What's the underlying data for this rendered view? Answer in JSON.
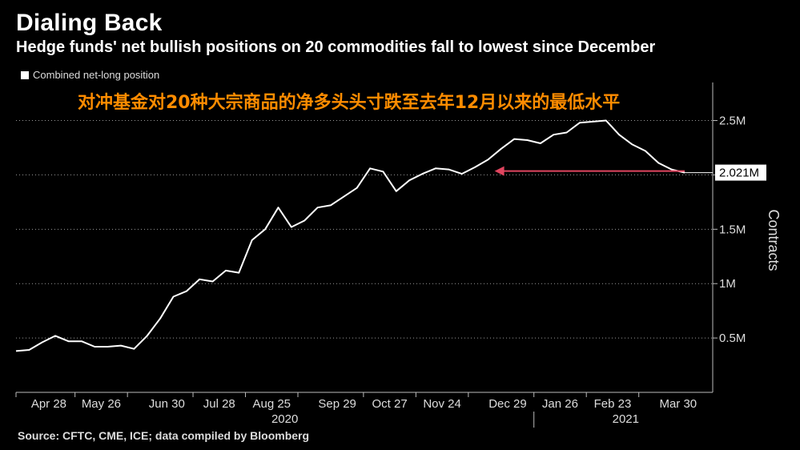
{
  "header": {
    "title": "Dialing Back",
    "subtitle": "Hedge funds' net bullish positions on 20 commodities fall to lowest since December"
  },
  "legend": {
    "label": "Combined net-long position"
  },
  "annotation": {
    "text": "对冲基金对20种大宗商品的净多头头寸跌至去年12月以来的最低水平"
  },
  "footer": {
    "source": "Source: CFTC, CME, ICE; data compiled by Bloomberg"
  },
  "chart_data": {
    "type": "line",
    "ylabel": "Contracts",
    "ylim": [
      0,
      2.85
    ],
    "yticks": [
      {
        "value": 0.5,
        "label": "0.5M"
      },
      {
        "value": 1.0,
        "label": "1M"
      },
      {
        "value": 1.5,
        "label": "1.5M"
      },
      {
        "value": 2.0,
        "label": "2M"
      },
      {
        "value": 2.5,
        "label": "2.5M"
      }
    ],
    "xticks": [
      {
        "index": 2.5,
        "label": "Apr 28"
      },
      {
        "index": 6.5,
        "label": "May 26"
      },
      {
        "index": 11.5,
        "label": "Jun 30"
      },
      {
        "index": 15.5,
        "label": "Jul 28"
      },
      {
        "index": 19.5,
        "label": "Aug 25"
      },
      {
        "index": 24.5,
        "label": "Sep 29"
      },
      {
        "index": 28.5,
        "label": "Oct 27"
      },
      {
        "index": 32.5,
        "label": "Nov 24"
      },
      {
        "index": 37.5,
        "label": "Dec 29"
      },
      {
        "index": 41.5,
        "label": "Jan 26"
      },
      {
        "index": 45.5,
        "label": "Feb 23"
      },
      {
        "index": 50.5,
        "label": "Mar 30"
      }
    ],
    "years": [
      {
        "index": 20.5,
        "label": "2020"
      },
      {
        "index": 46.5,
        "label": "2021"
      }
    ],
    "year_divider_index": 39.5,
    "series": [
      {
        "color": "#ffffff",
        "values": [
          0.38,
          0.39,
          0.46,
          0.52,
          0.47,
          0.47,
          0.42,
          0.42,
          0.43,
          0.4,
          0.52,
          0.68,
          0.88,
          0.93,
          1.04,
          1.02,
          1.12,
          1.1,
          1.4,
          1.5,
          1.7,
          1.52,
          1.58,
          1.7,
          1.72,
          1.8,
          1.88,
          2.06,
          2.03,
          1.85,
          1.95,
          2.01,
          2.06,
          2.05,
          2.01,
          2.07,
          2.14,
          2.24,
          2.33,
          2.32,
          2.29,
          2.37,
          2.39,
          2.48,
          2.49,
          2.5,
          2.37,
          2.28,
          2.22,
          2.11,
          2.05,
          2.021
        ]
      }
    ],
    "last_value_label": "2.021M",
    "last_value": 2.021,
    "arrow_color": "#e0455f",
    "arrow_from_index": 51,
    "arrow_to_index": 36.5
  }
}
